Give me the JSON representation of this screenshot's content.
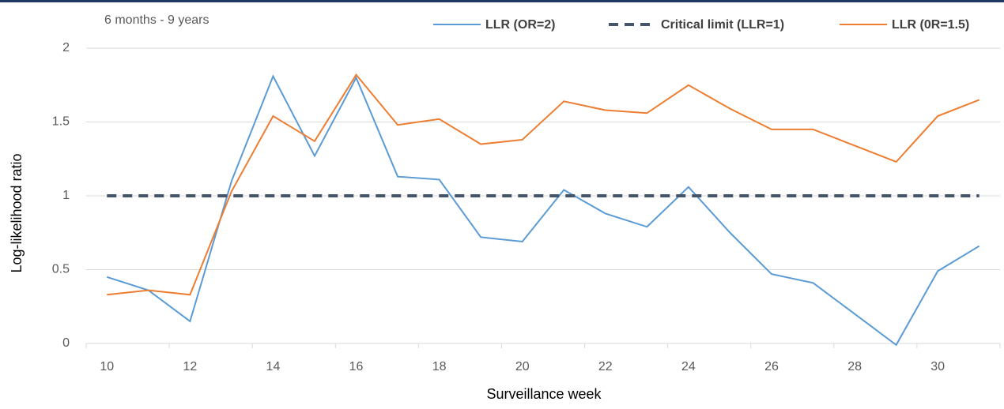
{
  "chart_data": {
    "type": "line",
    "annotation": "6 months - 9 years",
    "xlabel": "Surveillance week",
    "ylabel": "Log-likelihood ratio",
    "categories": [
      "10",
      null,
      "12",
      null,
      "14",
      null,
      "16",
      null,
      "18",
      null,
      "20",
      null,
      "22",
      null,
      "24",
      null,
      "26",
      null,
      "28",
      null,
      "30",
      null
    ],
    "series": [
      {
        "name": "LLR (OR=2)",
        "color": "#5b9bd5",
        "dash": false,
        "values": [
          0.45,
          0.36,
          0.15,
          1.1,
          1.81,
          1.27,
          1.8,
          1.13,
          1.11,
          0.72,
          0.69,
          1.04,
          0.88,
          0.79,
          1.06,
          0.75,
          0.47,
          0.41,
          0.2,
          -0.01,
          0.49,
          0.66
        ]
      },
      {
        "name": "Critical limit (LLR=1)",
        "color": "#44546a",
        "dash": true,
        "values": [
          1,
          1,
          1,
          1,
          1,
          1,
          1,
          1,
          1,
          1,
          1,
          1,
          1,
          1,
          1,
          1,
          1,
          1,
          1,
          1,
          1,
          1
        ]
      },
      {
        "name": "LLR (0R=1.5)",
        "color": "#ed7d31",
        "dash": false,
        "values": [
          0.33,
          0.36,
          0.33,
          1.03,
          1.54,
          1.37,
          1.82,
          1.48,
          1.52,
          1.35,
          1.38,
          1.64,
          1.58,
          1.56,
          1.75,
          1.59,
          1.45,
          1.45,
          1.34,
          1.23,
          1.54,
          1.65
        ]
      }
    ],
    "ylim": [
      0,
      2
    ],
    "yticks": [
      0,
      0.5,
      1,
      1.5,
      2
    ],
    "grid": true
  }
}
